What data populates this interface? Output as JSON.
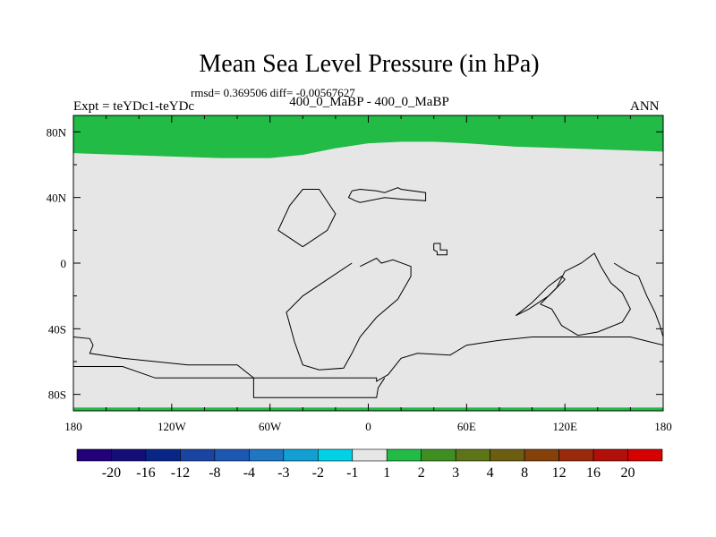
{
  "chart_data": {
    "type": "heatmap",
    "title": "Mean Sea Level Pressure (in hPa)",
    "stats": "rmsd= 0.369506 diff= -0.00567627",
    "left_label": "Expt = teYDc1-teYDc",
    "center_label": "400_0_MaBP - 400_0_MaBP",
    "right_label": "ANN",
    "x_range": [
      -180,
      180
    ],
    "y_range": [
      -90,
      90
    ],
    "x_ticks": [
      {
        "value": -180,
        "label": "180"
      },
      {
        "value": -120,
        "label": "120W"
      },
      {
        "value": -60,
        "label": "60W"
      },
      {
        "value": 0,
        "label": "0"
      },
      {
        "value": 60,
        "label": "60E"
      },
      {
        "value": 120,
        "label": "120E"
      },
      {
        "value": 180,
        "label": "180"
      }
    ],
    "y_ticks": [
      {
        "value": 80,
        "label": "80N"
      },
      {
        "value": 40,
        "label": "40N"
      },
      {
        "value": 0,
        "label": "0"
      },
      {
        "value": -40,
        "label": "40S"
      },
      {
        "value": -80,
        "label": "80S"
      }
    ],
    "background_level_color": "#e6e6e6",
    "highlight_region": {
      "description_value": "1 to 2",
      "color": "#21bb45",
      "north_boundary": 90,
      "south_boundary_lat_by_lon": [
        [
          -180,
          67
        ],
        [
          -150,
          66
        ],
        [
          -120,
          65
        ],
        [
          -90,
          64
        ],
        [
          -60,
          64
        ],
        [
          -40,
          66
        ],
        [
          -20,
          70
        ],
        [
          0,
          73
        ],
        [
          20,
          74
        ],
        [
          40,
          74
        ],
        [
          60,
          73
        ],
        [
          90,
          71
        ],
        [
          120,
          70
        ],
        [
          150,
          69
        ],
        [
          180,
          68
        ]
      ],
      "south_strip_lat": [
        -90,
        -88
      ]
    },
    "coastlines": [
      [
        [
          -180,
          -45
        ],
        [
          -170,
          -46
        ],
        [
          -168,
          -50
        ],
        [
          -170,
          -55
        ],
        [
          -150,
          -58
        ],
        [
          -130,
          -60
        ],
        [
          -110,
          -62
        ],
        [
          -80,
          -62
        ],
        [
          -70,
          -70
        ],
        [
          -40,
          -70
        ],
        [
          -10,
          -70
        ],
        [
          5,
          -70
        ],
        [
          5,
          -72
        ],
        [
          12,
          -68
        ],
        [
          20,
          -58
        ],
        [
          30,
          -55
        ],
        [
          50,
          -56
        ],
        [
          60,
          -50
        ],
        [
          80,
          -47
        ],
        [
          100,
          -45
        ],
        [
          120,
          -45
        ],
        [
          140,
          -45
        ],
        [
          160,
          -45
        ],
        [
          180,
          -50
        ]
      ],
      [
        [
          -180,
          -63
        ],
        [
          -150,
          -63
        ],
        [
          -130,
          -70
        ],
        [
          -100,
          -70
        ],
        [
          -70,
          -70
        ],
        [
          -70,
          -82
        ],
        [
          5,
          -82
        ],
        [
          6,
          -76
        ],
        [
          10,
          -70
        ]
      ],
      [
        [
          -10,
          0
        ],
        [
          -25,
          -10
        ],
        [
          -40,
          -20
        ],
        [
          -50,
          -30
        ],
        [
          -45,
          -48
        ],
        [
          -40,
          -62
        ],
        [
          -30,
          -65
        ],
        [
          -15,
          -64
        ],
        [
          -10,
          -55
        ],
        [
          -5,
          -45
        ],
        [
          5,
          -33
        ],
        [
          18,
          -22
        ],
        [
          22,
          -15
        ],
        [
          26,
          -8
        ],
        [
          26,
          -2
        ],
        [
          15,
          2
        ],
        [
          8,
          0
        ],
        [
          5,
          3
        ],
        [
          -5,
          -2
        ]
      ],
      [
        [
          -40,
          10
        ],
        [
          -55,
          20
        ],
        [
          -48,
          35
        ],
        [
          -40,
          45
        ],
        [
          -30,
          45
        ],
        [
          -20,
          30
        ],
        [
          -25,
          20
        ],
        [
          -40,
          10
        ]
      ],
      [
        [
          -10,
          44
        ],
        [
          -5,
          45
        ],
        [
          5,
          44
        ],
        [
          10,
          43
        ],
        [
          18,
          46
        ],
        [
          20,
          45
        ],
        [
          35,
          43
        ],
        [
          35,
          38
        ],
        [
          20,
          39
        ],
        [
          10,
          40
        ],
        [
          -5,
          37
        ],
        [
          -8,
          38
        ],
        [
          -12,
          40
        ],
        [
          -10,
          44
        ]
      ],
      [
        [
          40,
          12
        ],
        [
          44,
          12
        ],
        [
          44,
          8
        ],
        [
          48,
          8
        ],
        [
          48,
          5
        ],
        [
          42,
          5
        ],
        [
          42,
          7
        ],
        [
          40,
          8
        ],
        [
          40,
          12
        ]
      ],
      [
        [
          105,
          -25
        ],
        [
          115,
          -15
        ],
        [
          120,
          -5
        ],
        [
          130,
          0
        ],
        [
          138,
          6
        ],
        [
          142,
          -2
        ],
        [
          148,
          -12
        ],
        [
          155,
          -18
        ],
        [
          160,
          -28
        ],
        [
          155,
          -36
        ],
        [
          140,
          -42
        ],
        [
          128,
          -44
        ],
        [
          118,
          -38
        ],
        [
          112,
          -28
        ],
        [
          105,
          -25
        ]
      ],
      [
        [
          90,
          -32
        ],
        [
          100,
          -24
        ],
        [
          110,
          -14
        ],
        [
          118,
          -8
        ],
        [
          120,
          -10
        ],
        [
          110,
          -20
        ],
        [
          98,
          -28
        ],
        [
          90,
          -32
        ]
      ],
      [
        [
          150,
          0
        ],
        [
          158,
          -5
        ],
        [
          165,
          -8
        ],
        [
          170,
          -20
        ],
        [
          175,
          -30
        ],
        [
          178,
          -38
        ],
        [
          180,
          -45
        ]
      ]
    ],
    "colorbar": {
      "colors": [
        "#21007a",
        "#140e78",
        "#082687",
        "#1a44a2",
        "#1c58b2",
        "#1f76c3",
        "#12a0d4",
        "#00d2e6",
        "#e6e6e6",
        "#21bb45",
        "#3f8e22",
        "#5d7417",
        "#6c5d11",
        "#84410a",
        "#9a2a0c",
        "#b10f0a",
        "#d60101"
      ],
      "labels": [
        "-20",
        "-16",
        "-12",
        "-8",
        "-4",
        "-3",
        "-2",
        "-1",
        "1",
        "2",
        "3",
        "4",
        "8",
        "12",
        "16",
        "20"
      ]
    }
  }
}
